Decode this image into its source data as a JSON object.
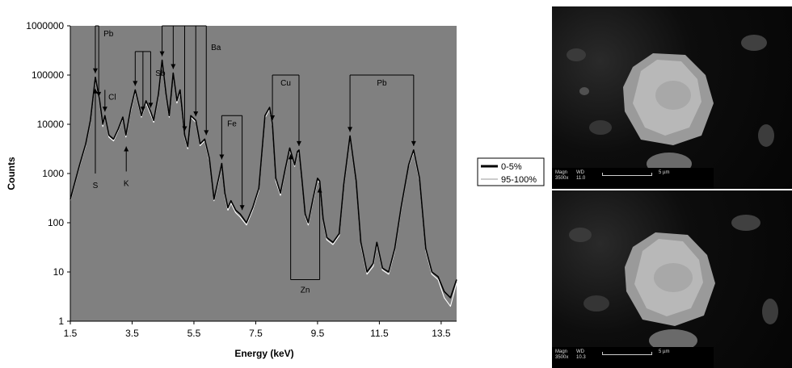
{
  "chart_data": {
    "type": "line",
    "xlabel": "Energy (keV)",
    "ylabel": "Counts",
    "yscale": "log",
    "xlim": [
      1.5,
      14.0
    ],
    "ylim": [
      1,
      1000000
    ],
    "x_ticks": [
      "1.5",
      "3.5",
      "5.5",
      "7.5",
      "9.5",
      "11.5",
      "13.5"
    ],
    "y_ticks": [
      "1",
      "10",
      "100",
      "1000",
      "10000",
      "100000",
      "1000000"
    ],
    "plot_background": "#808080",
    "grid": false,
    "legend_position": "right",
    "series": [
      {
        "name": "0-5%",
        "color": "#000000",
        "x": [
          1.5,
          1.8,
          2.0,
          2.15,
          2.31,
          2.45,
          2.55,
          2.62,
          2.75,
          2.9,
          3.05,
          3.2,
          3.3,
          3.45,
          3.6,
          3.8,
          3.95,
          4.1,
          4.2,
          4.35,
          4.47,
          4.6,
          4.7,
          4.83,
          4.95,
          5.05,
          5.2,
          5.3,
          5.4,
          5.56,
          5.7,
          5.85,
          6.0,
          6.15,
          6.3,
          6.4,
          6.5,
          6.6,
          6.7,
          6.85,
          7.0,
          7.2,
          7.4,
          7.6,
          7.8,
          7.95,
          8.04,
          8.15,
          8.3,
          8.45,
          8.6,
          8.76,
          8.85,
          8.9,
          9.0,
          9.1,
          9.2,
          9.35,
          9.5,
          9.57,
          9.68,
          9.8,
          10.0,
          10.2,
          10.35,
          10.55,
          10.75,
          10.9,
          11.1,
          11.3,
          11.42,
          11.6,
          11.8,
          12.0,
          12.2,
          12.45,
          12.61,
          12.8,
          13.0,
          13.2,
          13.4,
          13.6,
          13.8,
          14.0
        ],
        "values": [
          300,
          1500,
          4000,
          12000,
          90000,
          30000,
          10000,
          15000,
          6000,
          5000,
          8000,
          14000,
          6000,
          20000,
          50000,
          15000,
          30000,
          18000,
          12000,
          40000,
          200000,
          40000,
          15000,
          110000,
          30000,
          50000,
          6000,
          3500,
          15000,
          12000,
          4000,
          5000,
          2000,
          300,
          800,
          1600,
          400,
          200,
          280,
          180,
          150,
          100,
          200,
          500,
          15000,
          22000,
          10000,
          800,
          400,
          1200,
          3300,
          1500,
          2800,
          3000,
          700,
          150,
          100,
          300,
          800,
          700,
          120,
          50,
          40,
          60,
          600,
          5800,
          700,
          40,
          10,
          15,
          40,
          12,
          10,
          30,
          200,
          1500,
          3000,
          800,
          30,
          10,
          8,
          4,
          3,
          7
        ]
      },
      {
        "name": "95-100%",
        "color": "#ffffff",
        "x": [
          1.5,
          1.8,
          2.0,
          2.15,
          2.31,
          2.45,
          2.55,
          2.62,
          2.75,
          2.9,
          3.05,
          3.2,
          3.3,
          3.45,
          3.6,
          3.8,
          3.95,
          4.1,
          4.2,
          4.35,
          4.47,
          4.6,
          4.7,
          4.83,
          4.95,
          5.05,
          5.2,
          5.3,
          5.4,
          5.56,
          5.7,
          5.85,
          6.0,
          6.15,
          6.3,
          6.4,
          6.5,
          6.6,
          6.7,
          6.85,
          7.0,
          7.2,
          7.4,
          7.6,
          7.8,
          7.95,
          8.04,
          8.15,
          8.3,
          8.45,
          8.6,
          8.76,
          8.85,
          8.9,
          9.0,
          9.1,
          9.2,
          9.35,
          9.5,
          9.57,
          9.68,
          9.8,
          10.0,
          10.2,
          10.35,
          10.55,
          10.75,
          10.9,
          11.1,
          11.3,
          11.42,
          11.6,
          11.8,
          12.0,
          12.2,
          12.45,
          12.61,
          12.8,
          13.0,
          13.2,
          13.4,
          13.6,
          13.8,
          14.0
        ],
        "values": [
          280,
          1400,
          3700,
          11000,
          80000,
          27000,
          9000,
          14000,
          5500,
          4600,
          7500,
          13000,
          5500,
          18000,
          45000,
          14000,
          27000,
          16000,
          11000,
          36000,
          180000,
          36000,
          14000,
          100000,
          27000,
          45000,
          5500,
          3200,
          14000,
          11000,
          3700,
          4600,
          1800,
          280,
          700,
          1500,
          360,
          180,
          250,
          160,
          130,
          90,
          180,
          450,
          13500,
          20000,
          9000,
          700,
          360,
          1100,
          3000,
          1400,
          2500,
          2700,
          650,
          140,
          90,
          270,
          700,
          650,
          110,
          45,
          36,
          55,
          540,
          5200,
          650,
          36,
          9,
          13,
          36,
          11,
          9,
          27,
          180,
          1400,
          2700,
          720,
          27,
          9,
          7,
          3,
          2,
          6
        ]
      }
    ],
    "annotations": [
      {
        "label": "Pb",
        "type": "bracket",
        "x": [
          2.31,
          2.42
        ],
        "top": 1000000
      },
      {
        "label": "Sb",
        "type": "bracket",
        "x": [
          3.6,
          3.85,
          4.1
        ],
        "top": 300000
      },
      {
        "label": "Ba",
        "type": "bracket",
        "x": [
          4.47,
          4.83,
          5.2,
          5.56,
          5.9
        ],
        "top": 1000000
      },
      {
        "label": "Cl",
        "type": "arrow-down",
        "x": 2.62,
        "top": 50000
      },
      {
        "label": "S",
        "type": "arrow-up",
        "x": 2.31,
        "bottom": 1000
      },
      {
        "label": "K",
        "type": "arrow-up",
        "x": 3.31,
        "bottom": 1100
      },
      {
        "label": "Fe",
        "type": "bracket",
        "x": [
          6.4,
          7.06
        ],
        "top": 15000
      },
      {
        "label": "Cu",
        "type": "bracket",
        "x": [
          8.04,
          8.9
        ],
        "top": 100000
      },
      {
        "label": "Zn",
        "type": "bracket-up",
        "x": [
          8.63,
          9.57
        ],
        "bottom": 7
      },
      {
        "label": "Pb",
        "type": "bracket",
        "x": [
          10.55,
          12.61
        ],
        "top": 100000
      }
    ]
  },
  "images": {
    "top": {
      "magn_label": "Magn",
      "wd_label": "WD",
      "magn": "3500x",
      "wd": "11.0",
      "scale": "5 µm"
    },
    "bottom": {
      "magn_label": "Magn",
      "wd_label": "WD",
      "magn": "3500x",
      "wd": "10.3",
      "scale": "5 µm"
    }
  }
}
